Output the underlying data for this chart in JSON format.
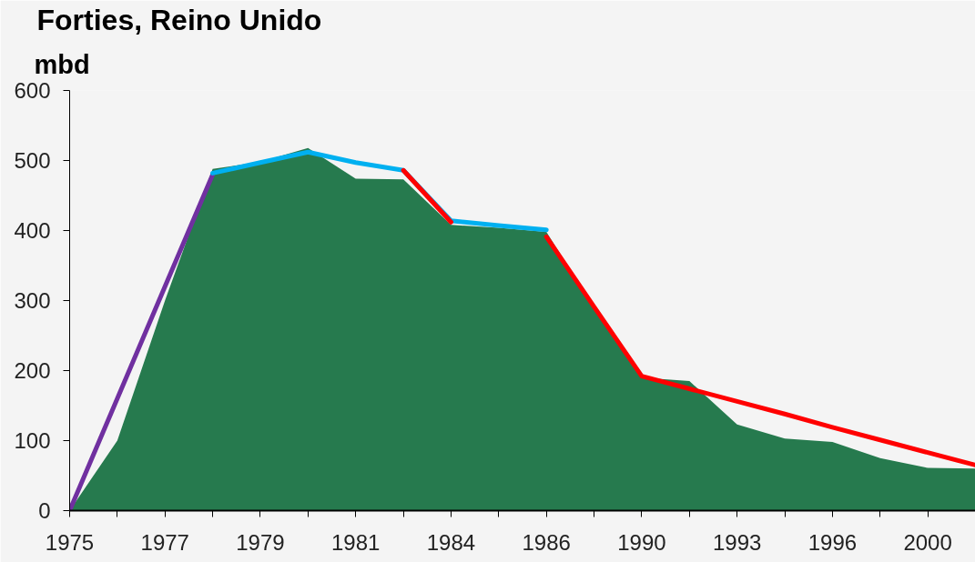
{
  "chart_data": {
    "type": "area",
    "title": "Forties, Reino Unido",
    "ylabel": "mbd",
    "categories": [
      "1975",
      null,
      "1977",
      null,
      "1979",
      null,
      "1981",
      null,
      "1984",
      null,
      "1986",
      null,
      "1990",
      null,
      "1993",
      null,
      "1996",
      null,
      "2000",
      null
    ],
    "series": [
      {
        "color": "#267a4e",
        "values": [
          0,
          100,
          300,
          488,
          498,
          518,
          474,
          473,
          408,
          404,
          398,
          290,
          190,
          185,
          123,
          103,
          98,
          75,
          61,
          60
        ]
      },
      {
        "type": "line",
        "color": "#7030a0",
        "values": [
          0,
          160,
          320,
          480,
          null,
          null,
          null,
          null,
          null,
          null,
          null,
          null,
          null,
          null,
          null,
          null,
          null,
          null,
          null,
          null
        ]
      },
      {
        "type": "line",
        "color": "#00b0f0",
        "values": [
          null,
          null,
          null,
          482,
          497,
          512,
          497,
          486,
          414,
          407,
          401,
          null,
          null,
          null,
          null,
          null,
          null,
          null,
          null,
          null
        ]
      },
      {
        "type": "line",
        "color": "#ff0000",
        "values": [
          null,
          null,
          null,
          null,
          null,
          null,
          null,
          486,
          412,
          null,
          391,
          291,
          192,
          174,
          156,
          138,
          119,
          101,
          83,
          65
        ]
      }
    ],
    "ylim": [
      0,
      600
    ],
    "yticks": [
      0,
      100,
      200,
      300,
      400,
      500,
      600
    ]
  }
}
